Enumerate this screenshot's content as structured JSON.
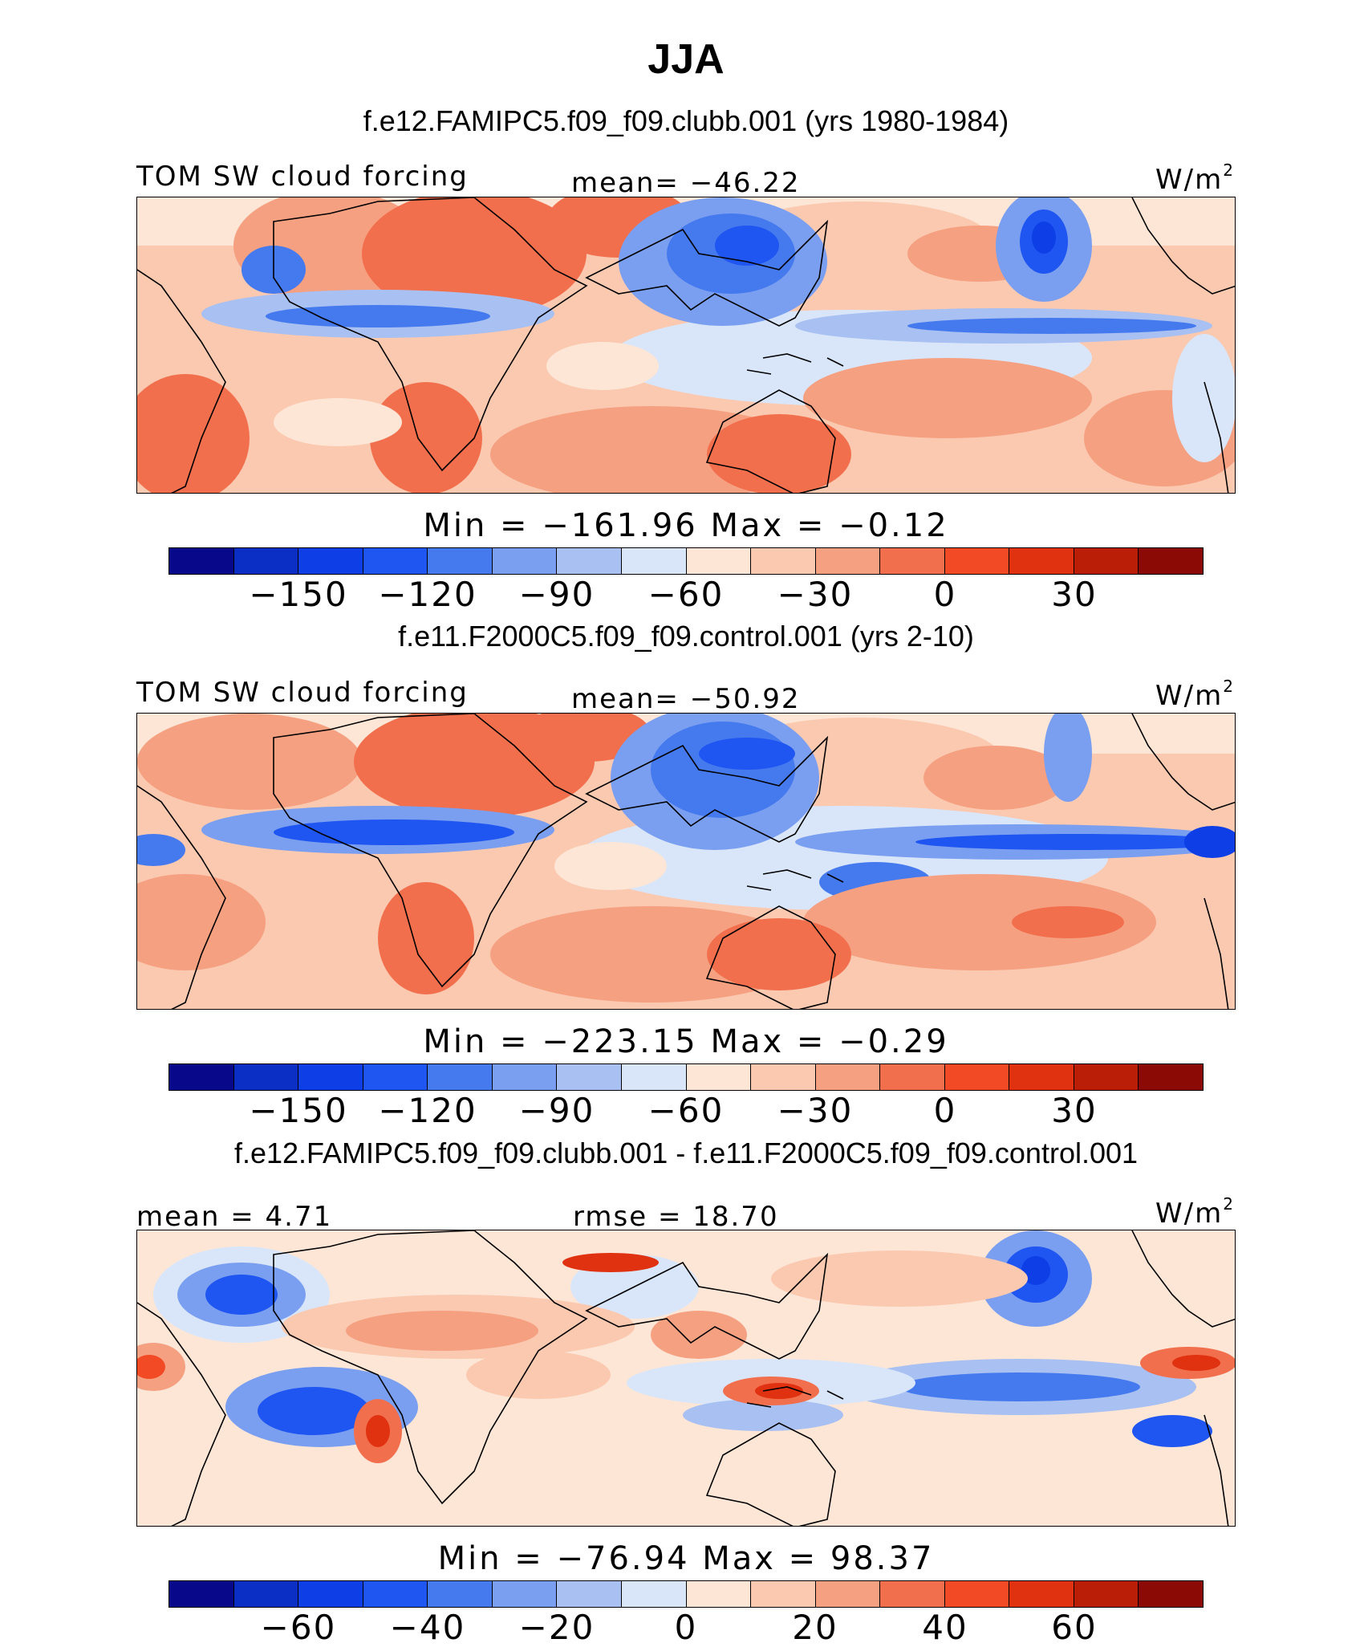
{
  "title": "JJA",
  "colors": {
    "scale": [
      "#08088a",
      "#0b2ec4",
      "#0d3ee6",
      "#1f55f0",
      "#4579ee",
      "#7a9ff0",
      "#a8c0f2",
      "#d9e6fa",
      "#fde6d6",
      "#fbc9b0",
      "#f6a082",
      "#f26f4e",
      "#f14a25",
      "#e03210",
      "#bb1e07",
      "#8c0a05"
    ]
  },
  "panels": [
    {
      "subtitle": "f.e12.FAMIPC5.f09_f09.clubb.001 (yrs 1980-1984)",
      "left_label": "TOM SW cloud forcing",
      "center_label": "mean= −46.22",
      "units": "W/m",
      "units_sup": "2",
      "minmax": "Min = −161.96 Max = −0.12",
      "ticks": [
        "−150",
        "−120",
        "−90",
        "−60",
        "−30",
        "0",
        "30"
      ]
    },
    {
      "subtitle": "f.e11.F2000C5.f09_f09.control.001 (yrs 2-10)",
      "left_label": "TOM SW cloud forcing",
      "center_label": "mean= −50.92",
      "units": "W/m",
      "units_sup": "2",
      "minmax": "Min = −223.15 Max = −0.29",
      "ticks": [
        "−150",
        "−120",
        "−90",
        "−60",
        "−30",
        "0",
        "30"
      ]
    },
    {
      "subtitle": "f.e12.FAMIPC5.f09_f09.clubb.001 - f.e11.F2000C5.f09_f09.control.001",
      "left_label": "mean =   4.71",
      "center_label": "rmse =   18.70",
      "units": "W/m",
      "units_sup": "2",
      "minmax": "Min = −76.94 Max =  98.37",
      "ticks": [
        "−60",
        "−40",
        "−20",
        "0",
        "20",
        "40",
        "60"
      ]
    }
  ]
}
